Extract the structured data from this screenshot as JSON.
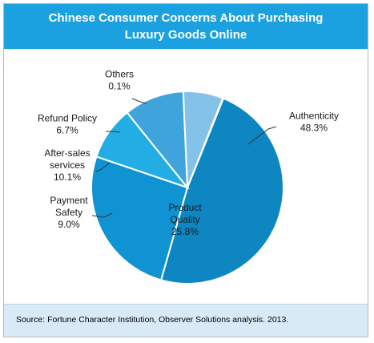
{
  "title_lines": [
    "Chinese Consumer Concerns About Purchasing",
    "Luxury Goods Online"
  ],
  "source": "Source: Fortune Character Institution, Observer Solutions analysis. 2013.",
  "colors": {
    "title_bg": "#1ba1e0",
    "source_bg": "#d9eaf7",
    "slices": [
      "#0e86c2",
      "#0f93d2",
      "#22aee5",
      "#3fa4dc",
      "#85c2ea",
      "#b3d8f2"
    ]
  },
  "chart_data": {
    "type": "pie",
    "title": "Chinese Consumer Concerns About Purchasing Luxury Goods Online",
    "slices": [
      {
        "label": "Authenticity",
        "value": 48.3,
        "value_label": "48.3%"
      },
      {
        "label": "Product Quality",
        "value": 25.8,
        "value_label": "25.8%"
      },
      {
        "label": "Payment Safety",
        "value": 9.0,
        "value_label": "9.0%"
      },
      {
        "label": "After-sales services",
        "value": 10.1,
        "value_label": "10.1%"
      },
      {
        "label": "Refund Policy",
        "value": 6.7,
        "value_label": "6.7%"
      },
      {
        "label": "Others",
        "value": 0.1,
        "value_label": "0.1%"
      }
    ],
    "label_lines": [
      [
        "Authenticity",
        "48.3%"
      ],
      [
        "Product",
        "Quality",
        "25.8%"
      ],
      [
        "Payment",
        "Safety",
        "9.0%"
      ],
      [
        "After-sales",
        "services",
        "10.1%"
      ],
      [
        "Refund Policy",
        "6.7%"
      ],
      [
        "Others",
        "0.1%"
      ]
    ]
  }
}
